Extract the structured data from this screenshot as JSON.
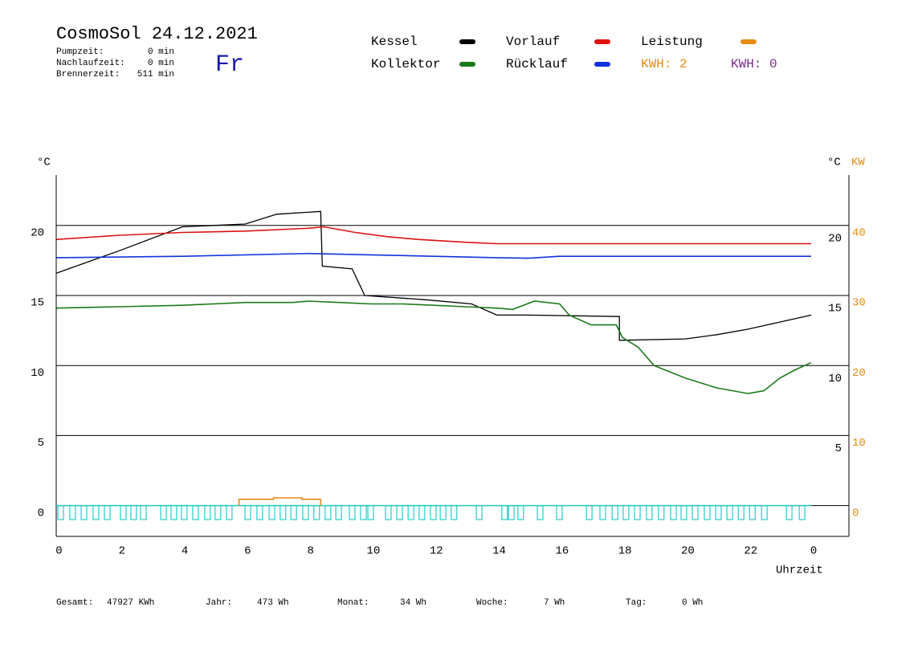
{
  "header": {
    "title": "CosmoSol 24.12.2021",
    "day": "Fr",
    "stats": [
      [
        "Pumpzeit:",
        "0 min"
      ],
      [
        "Nachlaufzeit:",
        "0 min"
      ],
      [
        "Brennerzeit:",
        "511 min"
      ]
    ],
    "kwh": [
      {
        "text": "KWH: 2",
        "color": "#e88a10"
      },
      {
        "text": "KWH: 0",
        "color": "#7a2a8a"
      }
    ]
  },
  "chart_data": {
    "type": "line",
    "ylabel": "°C",
    "y_right_label": "°C",
    "y2label": "KW",
    "xlabel": "Uhrzeit",
    "xlim": [
      0,
      25.2
    ],
    "ylim": [
      -2.2,
      23.6
    ],
    "y2lim": [
      -4.4,
      47.2
    ],
    "xticks": [
      0,
      2,
      4,
      6,
      8,
      10,
      12,
      14,
      16,
      18,
      20,
      22,
      {
        "value": 24,
        "label": "0"
      }
    ],
    "yticks": [
      0,
      5,
      10,
      15,
      20
    ],
    "y_right_ticks": [
      20,
      15,
      10,
      5
    ],
    "y2ticks": [
      0,
      10,
      20,
      30,
      40
    ],
    "y2color": "#e88a10",
    "grid": true,
    "series": [
      {
        "name": "Kessel",
        "color": "#000000",
        "x": [
          0,
          2,
          4,
          6,
          7,
          8.4,
          8.45,
          9.4,
          9.8,
          11.7,
          13.2,
          14,
          15,
          17.9,
          17.9,
          20,
          21,
          22,
          23,
          24
        ],
        "values": [
          16.6,
          18.2,
          19.9,
          20.1,
          20.8,
          21.0,
          17.1,
          16.9,
          15.0,
          14.7,
          14.4,
          13.6,
          13.6,
          13.5,
          11.8,
          11.9,
          12.2,
          12.6,
          13.1,
          13.6
        ]
      },
      {
        "name": "Kollektor",
        "color": "#1a7a1a",
        "x": [
          0,
          2,
          4,
          6,
          7.5,
          8,
          9,
          10,
          11,
          12,
          13,
          14,
          14.5,
          15.2,
          16,
          16.3,
          17,
          17.8,
          18,
          18.5,
          19,
          20,
          21,
          22,
          22.5,
          23,
          23.5,
          24
        ],
        "values": [
          14.1,
          14.2,
          14.3,
          14.5,
          14.5,
          14.6,
          14.5,
          14.4,
          14.4,
          14.3,
          14.2,
          14.1,
          14.0,
          14.6,
          14.4,
          13.6,
          12.9,
          12.9,
          12.0,
          11.3,
          10.0,
          9.1,
          8.4,
          8.0,
          8.2,
          9.1,
          9.7,
          10.2
        ]
      },
      {
        "name": "Vorlauf",
        "color": "#dd1111",
        "x": [
          0,
          2,
          4,
          6,
          8,
          8.5,
          9.5,
          10.5,
          11.5,
          13,
          14,
          16,
          18,
          20,
          22,
          24
        ],
        "values": [
          19.0,
          19.3,
          19.5,
          19.6,
          19.8,
          19.9,
          19.5,
          19.2,
          19.0,
          18.8,
          18.7,
          18.7,
          18.7,
          18.7,
          18.7,
          18.7
        ]
      },
      {
        "name": "Rücklauf",
        "color": "#1133dd",
        "x": [
          0,
          4,
          8,
          10,
          12,
          14,
          15,
          16,
          20,
          24
        ],
        "values": [
          17.7,
          17.8,
          18.0,
          17.9,
          17.8,
          17.7,
          17.66,
          17.8,
          17.8,
          17.8
        ]
      },
      {
        "name": "Leistung",
        "color": "#e88a10",
        "axis": "y2",
        "x": [
          5.8,
          5.8,
          6.9,
          6.9,
          7.8,
          7.8,
          8.4,
          8.4
        ],
        "values": [
          0,
          0.9,
          0.9,
          1.1,
          1.1,
          0.9,
          0.9,
          0
        ]
      }
    ],
    "pulse_color": "#22cccc",
    "pulses": [
      0.04,
      0.42,
      0.78,
      1.16,
      1.52,
      2.03,
      2.36,
      2.67,
      3.31,
      3.64,
      3.97,
      4.33,
      4.71,
      5.04,
      5.4,
      5.99,
      6.37,
      6.76,
      7.11,
      7.45,
      7.83,
      8.18,
      8.54,
      8.88,
      9.31,
      9.67,
      9.9,
      10.46,
      10.82,
      11.18,
      11.53,
      11.89,
      12.2,
      12.55,
      13.35,
      14.16,
      14.37,
      14.67,
      15.29,
      15.9,
      16.85,
      17.28,
      17.67,
      18.02,
      18.38,
      18.76,
      19.14,
      19.53,
      19.86,
      20.22,
      20.6,
      20.96,
      21.32,
      21.68,
      22.04,
      22.42,
      23.21,
      23.62
    ]
  },
  "footer": [
    [
      "Gesamt:",
      "47927 KWh"
    ],
    [
      "Jahr:",
      "473 Wh"
    ],
    [
      "Monat:",
      "34 Wh"
    ],
    [
      "Woche:",
      "7 Wh"
    ],
    [
      "Tag:",
      "0 Wh"
    ]
  ]
}
